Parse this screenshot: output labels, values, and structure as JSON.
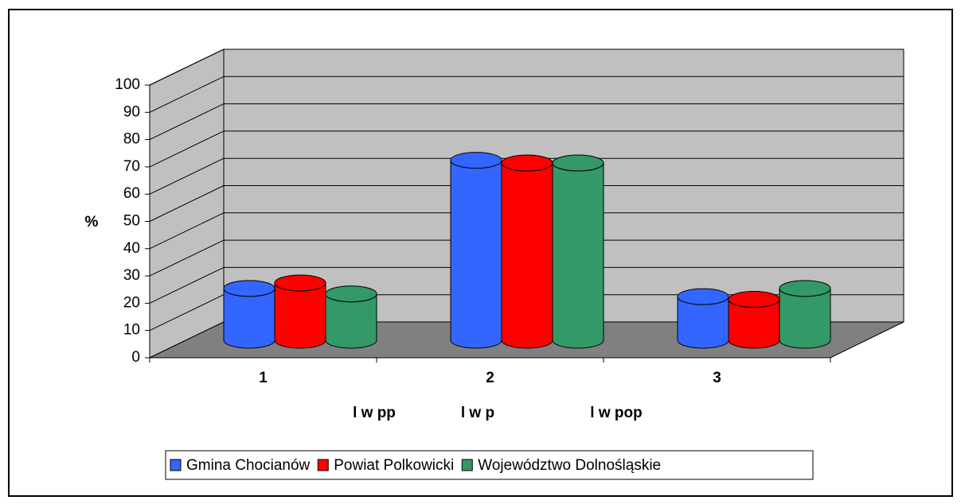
{
  "chart_data": {
    "type": "bar3d",
    "ylabel": "%",
    "categories": [
      "1",
      "2",
      "3"
    ],
    "annotations": [
      "l w pp",
      "l w p",
      "l w pop"
    ],
    "series": [
      {
        "name": "Gmina Chocianów",
        "color": "#3366ff",
        "values": [
          19,
          66,
          16
        ]
      },
      {
        "name": "Powiat Polkowicki",
        "color": "#ff0000",
        "values": [
          21,
          65,
          15
        ]
      },
      {
        "name": "Województwo Dolnośląskie",
        "color": "#339966",
        "values": [
          17,
          65,
          19
        ]
      }
    ],
    "ylim": [
      0,
      100
    ],
    "yticks": [
      0,
      10,
      20,
      30,
      40,
      50,
      60,
      70,
      80,
      90,
      100
    ],
    "grid": true,
    "legend": "bottom"
  }
}
